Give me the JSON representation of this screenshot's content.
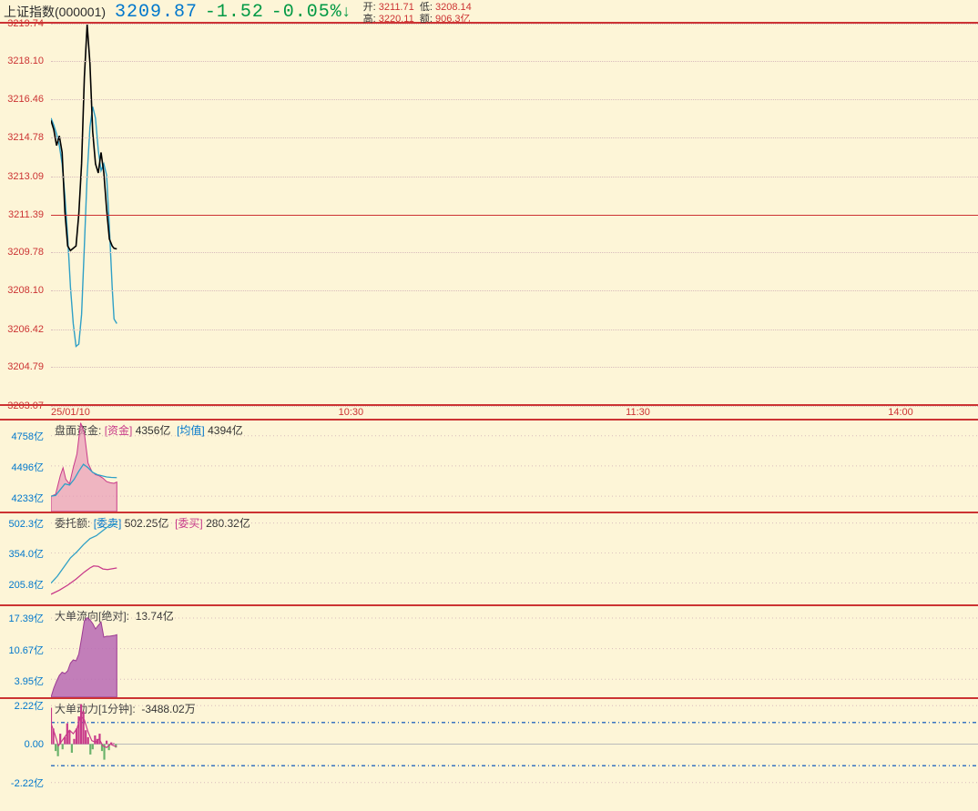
{
  "header": {
    "name": "上证指数",
    "code": "(000001)",
    "price": "3209.87",
    "change": "-1.52",
    "pct": "-0.05%",
    "arrow": "↓",
    "open_lbl": "开:",
    "open": "3211.71",
    "low_lbl": "低:",
    "low": "3208.14",
    "high_lbl": "高:",
    "high": "3220.11",
    "amt_lbl": "额:",
    "amt": "906.3亿"
  },
  "colors": {
    "bg": "#fdf5d7",
    "rule": "#cc3333",
    "grid": "#d8bcbc",
    "price_line": "#000000",
    "avg_line": "#2fa0c6",
    "blue": "#0077cc",
    "pink": "#c83a8a",
    "purple_fill": "#b768b4",
    "purple_stroke": "#9c3b93",
    "pink_fill": "#e89ab8",
    "pink_stroke": "#c83a8a",
    "green": "#6cb36c",
    "dash_blue": "#3974c0"
  },
  "main": {
    "ymin": 3203.07,
    "ymax": 3219.74,
    "yticks": [
      3219.74,
      3218.1,
      3216.46,
      3214.78,
      3213.09,
      3211.39,
      3209.78,
      3208.1,
      3206.42,
      3204.79,
      3203.07
    ],
    "ref_line": 3211.39,
    "price_series": [
      [
        0,
        3215.5
      ],
      [
        0.3,
        3215.1
      ],
      [
        0.6,
        3214.4
      ],
      [
        0.9,
        3214.82
      ],
      [
        1.2,
        3214.1
      ],
      [
        1.5,
        3211.5
      ],
      [
        1.8,
        3210.0
      ],
      [
        2.1,
        3209.8
      ],
      [
        2.4,
        3209.9
      ],
      [
        2.7,
        3210.0
      ],
      [
        3.0,
        3211.4
      ],
      [
        3.3,
        3213.6
      ],
      [
        3.6,
        3217.4
      ],
      [
        3.9,
        3219.7
      ],
      [
        4.2,
        3218.0
      ],
      [
        4.5,
        3215.0
      ],
      [
        4.8,
        3213.6
      ],
      [
        5.1,
        3213.2
      ],
      [
        5.4,
        3214.1
      ],
      [
        5.7,
        3213.2
      ],
      [
        6.0,
        3211.6
      ],
      [
        6.3,
        3210.3
      ],
      [
        6.6,
        3210.0
      ],
      [
        6.8,
        3209.9
      ],
      [
        7.1,
        3209.87
      ]
    ],
    "avg_series": [
      [
        0,
        3215.6
      ],
      [
        0.3,
        3215.3
      ],
      [
        0.6,
        3214.9
      ],
      [
        0.9,
        3214.4
      ],
      [
        1.2,
        3213.6
      ],
      [
        1.5,
        3212.2
      ],
      [
        1.8,
        3210.4
      ],
      [
        2.1,
        3208.2
      ],
      [
        2.4,
        3206.6
      ],
      [
        2.7,
        3205.6
      ],
      [
        3.0,
        3205.7
      ],
      [
        3.3,
        3207.0
      ],
      [
        3.6,
        3210.0
      ],
      [
        3.9,
        3213.1
      ],
      [
        4.2,
        3215.2
      ],
      [
        4.5,
        3216.1
      ],
      [
        4.8,
        3215.6
      ],
      [
        5.1,
        3214.2
      ],
      [
        5.4,
        3213.3
      ],
      [
        5.7,
        3213.6
      ],
      [
        6.0,
        3213.1
      ],
      [
        6.3,
        3210.8
      ],
      [
        6.6,
        3208.2
      ],
      [
        6.8,
        3206.8
      ],
      [
        7.1,
        3206.6
      ]
    ],
    "x_range_total": 100,
    "x_ticks": [
      {
        "pos": 0,
        "label": "25/01/10"
      },
      {
        "pos": 31,
        "label": "10:30"
      },
      {
        "pos": 62,
        "label": "11:30"
      },
      {
        "pos": 93,
        "label": "14:00"
      }
    ]
  },
  "sub1": {
    "height": 102,
    "legend": {
      "title": "盘面资金:",
      "k1": "[资金]",
      "v1": "4356亿",
      "k2": "[均值]",
      "v2": "4394亿"
    },
    "ymin": 4100,
    "ymax": 4890,
    "yticks": [
      "4758亿",
      "4496亿",
      "4233亿"
    ],
    "ytick_vals": [
      4758,
      4496,
      4233
    ],
    "area_series": [
      [
        0,
        4233
      ],
      [
        0.5,
        4250
      ],
      [
        1.0,
        4410
      ],
      [
        1.3,
        4480
      ],
      [
        1.6,
        4380
      ],
      [
        2.0,
        4340
      ],
      [
        2.4,
        4480
      ],
      [
        2.8,
        4600
      ],
      [
        3.2,
        4870
      ],
      [
        3.6,
        4780
      ],
      [
        4.0,
        4520
      ],
      [
        4.4,
        4450
      ],
      [
        4.8,
        4420
      ],
      [
        5.2,
        4410
      ],
      [
        5.6,
        4390
      ],
      [
        6.0,
        4360
      ],
      [
        6.4,
        4350
      ],
      [
        6.8,
        4345
      ],
      [
        7.1,
        4356
      ]
    ],
    "avg_series": [
      [
        0,
        4233
      ],
      [
        0.5,
        4240
      ],
      [
        1.0,
        4290
      ],
      [
        1.5,
        4340
      ],
      [
        2.0,
        4330
      ],
      [
        2.5,
        4380
      ],
      [
        3.0,
        4450
      ],
      [
        3.5,
        4510
      ],
      [
        4.0,
        4480
      ],
      [
        4.5,
        4440
      ],
      [
        5.0,
        4420
      ],
      [
        5.5,
        4410
      ],
      [
        6.0,
        4400
      ],
      [
        6.5,
        4396
      ],
      [
        7.1,
        4394
      ]
    ]
  },
  "sub2": {
    "height": 102,
    "legend": {
      "title": "委托额:",
      "k1": "[委卖]",
      "v1": "502.25亿",
      "k2": "[委买]",
      "v2": "280.32亿"
    },
    "ymin": 100,
    "ymax": 550,
    "yticks": [
      "502.3亿",
      "354.0亿",
      "205.8亿"
    ],
    "ytick_vals": [
      502.3,
      354.0,
      205.8
    ],
    "sell_series": [
      [
        0,
        205
      ],
      [
        0.7,
        240
      ],
      [
        1.4,
        285
      ],
      [
        2.1,
        330
      ],
      [
        2.8,
        360
      ],
      [
        3.5,
        395
      ],
      [
        4.2,
        425
      ],
      [
        4.9,
        440
      ],
      [
        5.6,
        465
      ],
      [
        6.3,
        490
      ],
      [
        7.1,
        502
      ]
    ],
    "buy_series": [
      [
        0,
        150
      ],
      [
        0.9,
        170
      ],
      [
        1.8,
        195
      ],
      [
        2.7,
        225
      ],
      [
        3.6,
        260
      ],
      [
        4.2,
        280
      ],
      [
        4.6,
        290
      ],
      [
        5.1,
        288
      ],
      [
        5.6,
        275
      ],
      [
        6.1,
        272
      ],
      [
        6.8,
        278
      ],
      [
        7.1,
        280
      ]
    ]
  },
  "sub3": {
    "height": 102,
    "legend": {
      "title": "大单流向[绝对]:",
      "v": "13.74亿"
    },
    "ymin": 0,
    "ymax": 20,
    "yticks": [
      "17.39亿",
      "10.67亿",
      "3.95亿"
    ],
    "ytick_vals": [
      17.39,
      10.67,
      3.95
    ],
    "area_series": [
      [
        0,
        0
      ],
      [
        0.3,
        2
      ],
      [
        0.6,
        3.5
      ],
      [
        0.9,
        4.8
      ],
      [
        1.2,
        5.5
      ],
      [
        1.5,
        5.2
      ],
      [
        1.8,
        5.8
      ],
      [
        2.1,
        7.5
      ],
      [
        2.4,
        8.2
      ],
      [
        2.7,
        8.0
      ],
      [
        3.0,
        9.5
      ],
      [
        3.3,
        13.0
      ],
      [
        3.6,
        16.8
      ],
      [
        3.9,
        17.5
      ],
      [
        4.2,
        17.0
      ],
      [
        4.5,
        16.2
      ],
      [
        4.8,
        15.0
      ],
      [
        5.1,
        15.8
      ],
      [
        5.4,
        16.5
      ],
      [
        5.7,
        13.2
      ],
      [
        6.0,
        13.4
      ],
      [
        6.3,
        13.4
      ],
      [
        6.6,
        13.5
      ],
      [
        6.9,
        13.6
      ],
      [
        7.1,
        13.74
      ]
    ]
  },
  "sub4": {
    "height": 99,
    "legend": {
      "title": "大单动力[1分钟]:",
      "v": "-3488.02万"
    },
    "ymin": -2.6,
    "ymax": 2.6,
    "yticks": [
      "2.22亿",
      "0.00",
      "-2.22亿"
    ],
    "ytick_vals": [
      2.22,
      0.0,
      -2.22
    ],
    "dash_lines": [
      1.25,
      -1.25
    ],
    "bar_series": [
      [
        0,
        2.1,
        "r"
      ],
      [
        0.25,
        0.9,
        "r"
      ],
      [
        0.5,
        -0.4,
        "g"
      ],
      [
        0.75,
        -0.7,
        "g"
      ],
      [
        1.0,
        0.6,
        "r"
      ],
      [
        1.25,
        -0.3,
        "g"
      ],
      [
        1.5,
        0.4,
        "r"
      ],
      [
        1.75,
        1.2,
        "r"
      ],
      [
        2.0,
        0.8,
        "r"
      ],
      [
        2.25,
        -0.5,
        "g"
      ],
      [
        2.5,
        0.3,
        "r"
      ],
      [
        2.75,
        0.9,
        "r"
      ],
      [
        3.0,
        1.6,
        "r"
      ],
      [
        3.25,
        2.3,
        "r"
      ],
      [
        3.5,
        1.9,
        "r"
      ],
      [
        3.75,
        0.8,
        "r"
      ],
      [
        4.0,
        0.4,
        "r"
      ],
      [
        4.25,
        -0.6,
        "g"
      ],
      [
        4.5,
        -0.3,
        "g"
      ],
      [
        4.75,
        0.5,
        "r"
      ],
      [
        5.0,
        0.3,
        "r"
      ],
      [
        5.25,
        0.6,
        "r"
      ],
      [
        5.5,
        -0.4,
        "g"
      ],
      [
        5.75,
        -0.9,
        "g"
      ],
      [
        6.0,
        0.2,
        "r"
      ],
      [
        6.25,
        -0.35,
        "g"
      ],
      [
        6.5,
        0.1,
        "r"
      ],
      [
        6.75,
        0.05,
        "r"
      ],
      [
        7.0,
        -0.2,
        "g"
      ]
    ],
    "line_series": [
      [
        0,
        1.2
      ],
      [
        0.4,
        0.6
      ],
      [
        0.8,
        -0.1
      ],
      [
        1.2,
        0.2
      ],
      [
        1.6,
        0.5
      ],
      [
        2.0,
        0.8
      ],
      [
        2.4,
        0.6
      ],
      [
        2.8,
        0.9
      ],
      [
        3.2,
        1.6
      ],
      [
        3.6,
        1.4
      ],
      [
        4.0,
        0.7
      ],
      [
        4.4,
        0.2
      ],
      [
        4.8,
        0.1
      ],
      [
        5.2,
        0.3
      ],
      [
        5.6,
        -0.1
      ],
      [
        6.0,
        -0.2
      ],
      [
        6.4,
        0.0
      ],
      [
        6.8,
        -0.1
      ],
      [
        7.1,
        -0.15
      ]
    ]
  }
}
